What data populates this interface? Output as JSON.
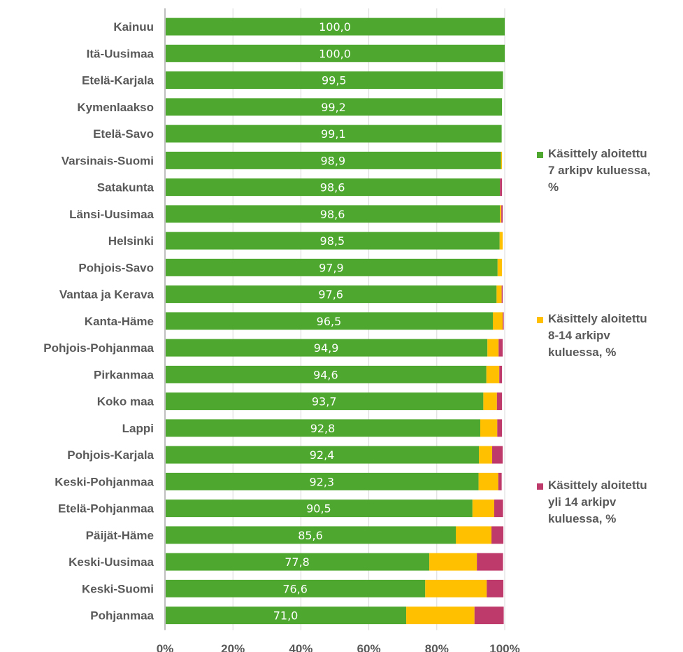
{
  "chart_data": {
    "type": "bar",
    "orientation": "horizontal",
    "stacked": true,
    "categories": [
      "Kainuu",
      "Itä-Uusimaa",
      "Etelä-Karjala",
      "Kymenlaakso",
      "Etelä-Savo",
      "Varsinais-Suomi",
      "Satakunta",
      "Länsi-Uusimaa",
      "Helsinki",
      "Pohjois-Savo",
      "Vantaa ja Kerava",
      "Kanta-Häme",
      "Pohjois-Pohjanmaa",
      "Pirkanmaa",
      "Koko maa",
      "Lappi",
      "Pohjois-Karjala",
      "Keski-Pohjanmaa",
      "Etelä-Pohjanmaa",
      "Päijät-Häme",
      "Keski-Uusimaa",
      "Keski-Suomi",
      "Pohjanmaa"
    ],
    "series": [
      {
        "name": "Käsittely aloitettu 7 arkipv kuluessa, %",
        "color": "#4ea72e",
        "values": [
          100.0,
          100.0,
          99.5,
          99.2,
          99.1,
          98.9,
          98.6,
          98.6,
          98.5,
          97.9,
          97.6,
          96.5,
          94.9,
          94.6,
          93.7,
          92.8,
          92.4,
          92.3,
          90.5,
          85.6,
          77.8,
          76.6,
          71.0
        ],
        "labels": [
          "100,0",
          "100,0",
          "99,5",
          "99,2",
          "99,1",
          "98,9",
          "98,6",
          "98,6",
          "98,5",
          "97,9",
          "97,6",
          "96,5",
          "94,9",
          "94,6",
          "93,7",
          "92,8",
          "92,4",
          "92,3",
          "90,5",
          "85,6",
          "77,8",
          "76,6",
          "71,0"
        ]
      },
      {
        "name": "Käsittely aloitettu 8-14 arkipv kuluessa, %",
        "color": "#ffc000",
        "values": [
          0.0,
          0.0,
          0.0,
          0.0,
          0.0,
          0.3,
          0.0,
          0.4,
          0.9,
          1.3,
          1.5,
          2.9,
          3.3,
          3.8,
          4.0,
          5.0,
          3.9,
          5.8,
          6.4,
          10.5,
          14.0,
          18.1,
          20.1
        ]
      },
      {
        "name": "Käsittely aloitettu yli 14 arkipv kuluessa, %",
        "color": "#be3a6a",
        "values": [
          0.0,
          0.0,
          0.0,
          0.0,
          0.0,
          0.0,
          0.6,
          0.4,
          0.0,
          0.0,
          0.3,
          0.3,
          1.2,
          0.8,
          1.5,
          1.4,
          3.1,
          1.0,
          2.6,
          3.5,
          7.7,
          4.9,
          8.6
        ]
      }
    ],
    "xlim": [
      0,
      100
    ],
    "x_ticks": [
      "0%",
      "20%",
      "40%",
      "60%",
      "80%",
      "100%"
    ],
    "grid": true,
    "legend_position": "right"
  }
}
